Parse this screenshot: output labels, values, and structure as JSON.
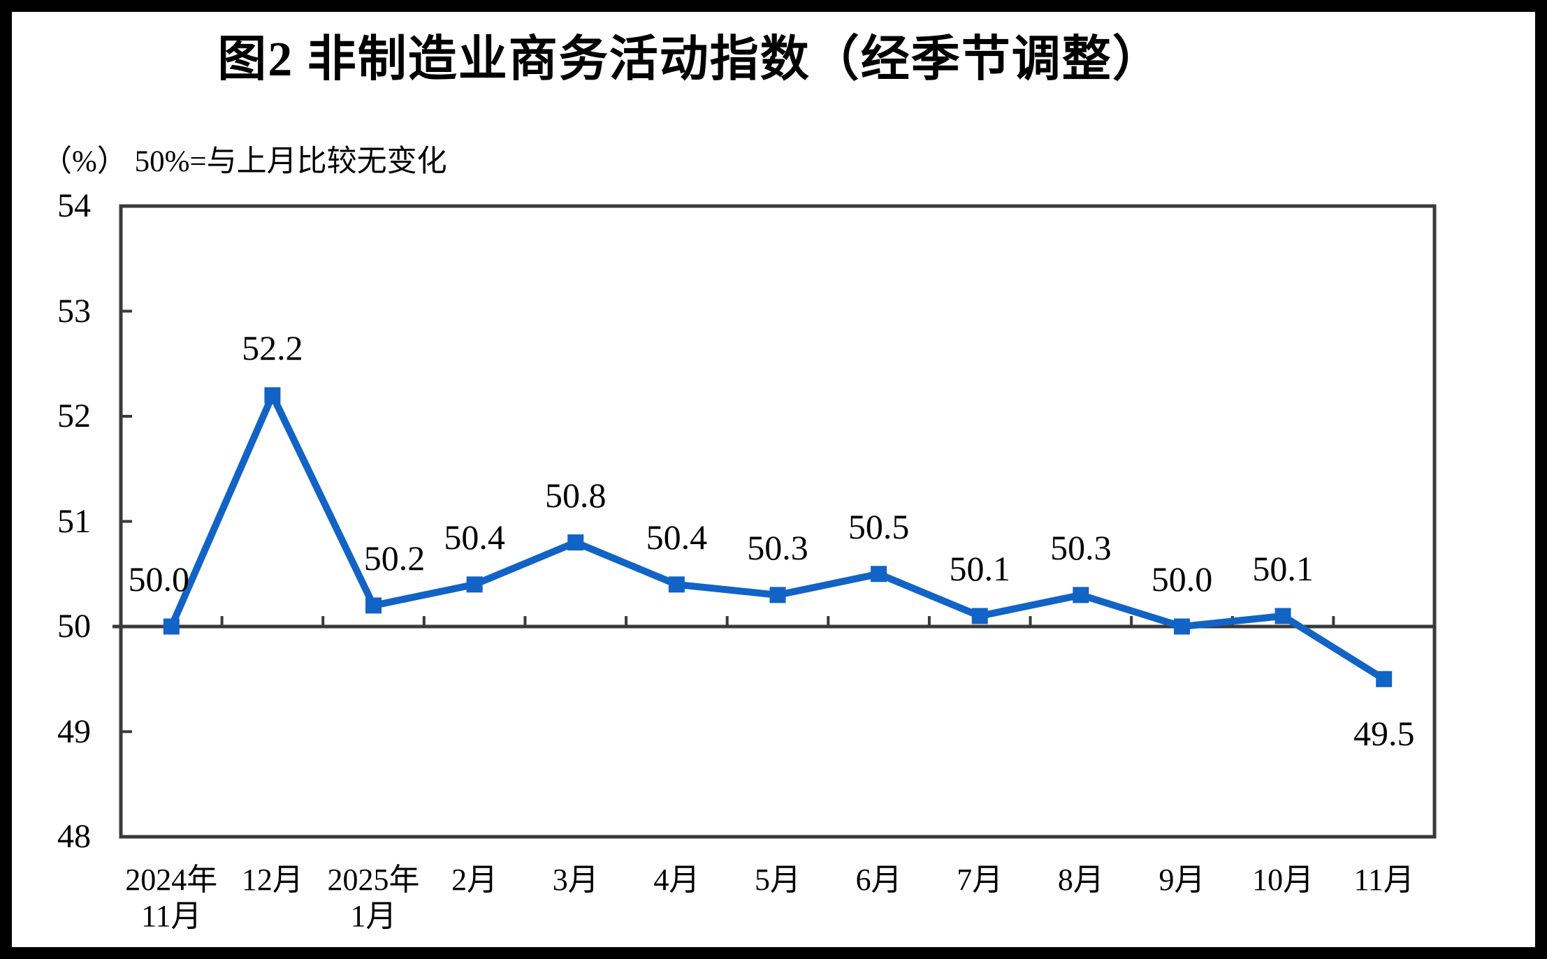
{
  "title": "图2 非制造业商务活动指数（经季节调整）",
  "subtitle": "（%） 50%=与上月比较无变化",
  "chart_data": {
    "type": "line",
    "title": "图2 非制造业商务活动指数（经季节调整）",
    "unit_note": "（%） 50%=与上月比较无变化",
    "categories": [
      "2024年\n11月",
      "12月",
      "2025年\n1月",
      "2月",
      "3月",
      "4月",
      "5月",
      "6月",
      "7月",
      "8月",
      "9月",
      "10月",
      "11月"
    ],
    "series": [
      {
        "name": "非制造业商务活动指数",
        "values": [
          50.0,
          52.2,
          50.2,
          50.4,
          50.8,
          50.4,
          50.3,
          50.5,
          50.1,
          50.3,
          50.0,
          50.1,
          49.5
        ]
      }
    ],
    "point_labels": [
      "50.0",
      "52.2",
      "50.2",
      "50.4",
      "50.8",
      "50.4",
      "50.3",
      "50.5",
      "50.1",
      "50.3",
      "50.0",
      "50.1",
      "49.5"
    ],
    "label_positions": [
      "above",
      "above",
      "above",
      "above",
      "above",
      "above",
      "above",
      "above",
      "above",
      "above",
      "above",
      "above",
      "below"
    ],
    "ylim": [
      48,
      54
    ],
    "yticks": [
      48,
      49,
      50,
      51,
      52,
      53,
      54
    ],
    "axis_cross_at": 50,
    "grid": false,
    "legend": "none",
    "marker": "square",
    "colors": {
      "line": "#1163C6",
      "axis": "#3a3a3a",
      "text": "#000000",
      "background": "#ffffff",
      "frame": "#000000"
    }
  }
}
